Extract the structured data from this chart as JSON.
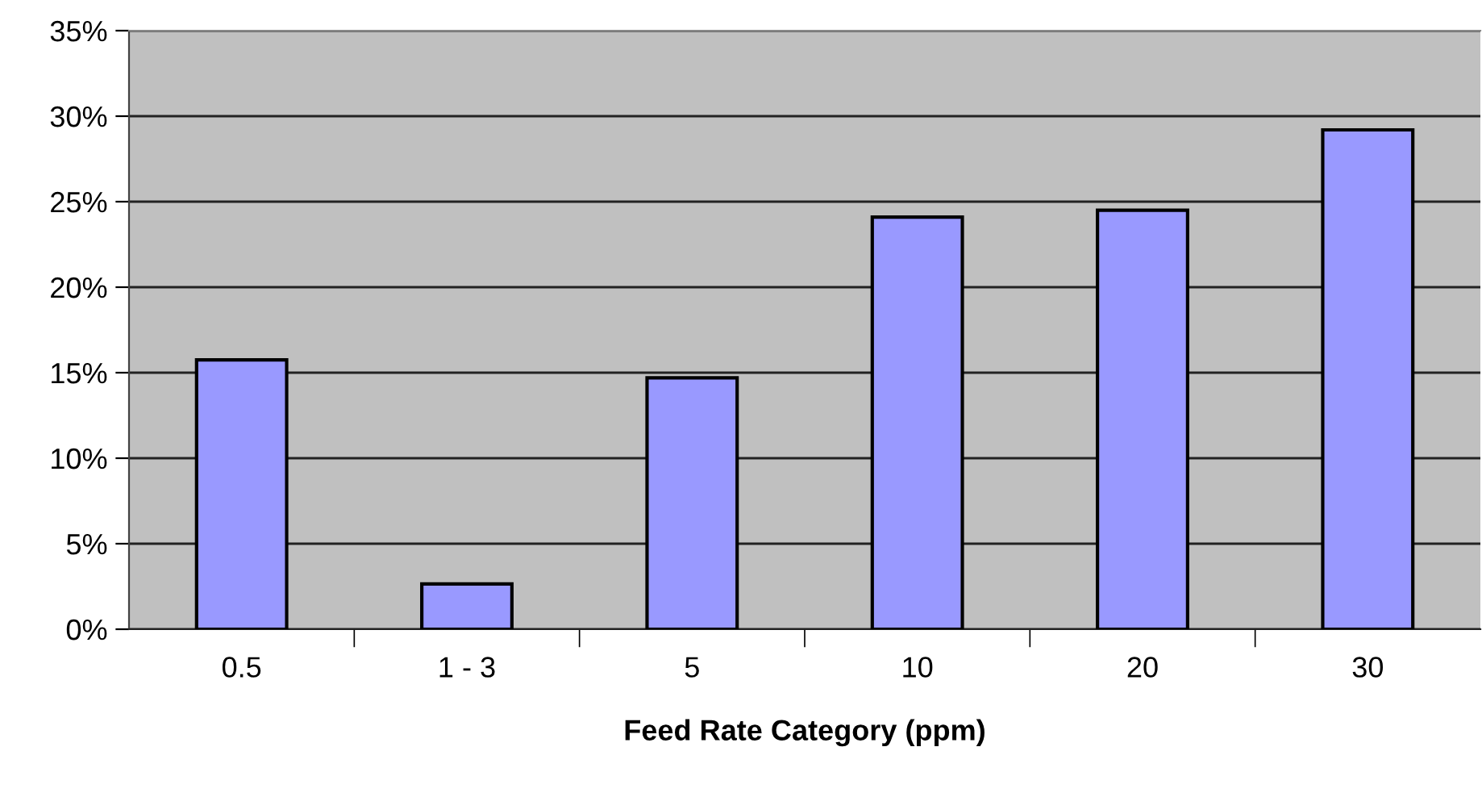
{
  "chart_data": {
    "type": "bar",
    "xlabel": "Feed Rate Category (ppm)",
    "categories": [
      "0.5",
      "1 - 3",
      "5",
      "10",
      "20",
      "30"
    ],
    "values": [
      15.75,
      2.65,
      14.7,
      24.1,
      24.5,
      29.2
    ],
    "color": "#9999ff",
    "ylim": [
      0,
      35
    ],
    "yticks": [
      {
        "value": 0,
        "label": "0%"
      },
      {
        "value": 5,
        "label": "5%"
      },
      {
        "value": 10,
        "label": "10%"
      },
      {
        "value": 15,
        "label": "15%"
      },
      {
        "value": 20,
        "label": "20%"
      },
      {
        "value": 25,
        "label": "25%"
      },
      {
        "value": 30,
        "label": "30%"
      },
      {
        "value": 35,
        "label": "35%"
      }
    ],
    "grid": "y",
    "legend": false
  }
}
